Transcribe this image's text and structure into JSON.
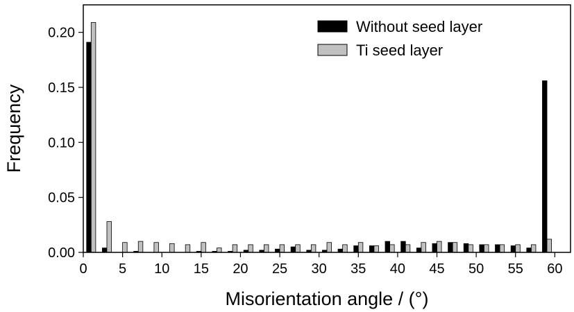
{
  "chart_data": {
    "type": "bar",
    "xlabel": "Misorientation angle / (°)",
    "ylabel": "Frequency",
    "xlim": [
      0,
      62
    ],
    "ylim": [
      0,
      0.225
    ],
    "bin_width": 2,
    "x": [
      1,
      3,
      5,
      7,
      9,
      11,
      13,
      15,
      17,
      19,
      21,
      23,
      25,
      27,
      29,
      31,
      33,
      35,
      37,
      39,
      41,
      43,
      45,
      47,
      49,
      51,
      53,
      55,
      57,
      59
    ],
    "x_ticks": [
      0,
      5,
      10,
      15,
      20,
      25,
      30,
      35,
      40,
      45,
      50,
      55,
      60
    ],
    "x_tick_labels": [
      "0",
      "5",
      "10",
      "15",
      "20",
      "25",
      "30",
      "35",
      "40",
      "45",
      "50",
      "55",
      "60"
    ],
    "y_ticks": [
      0.0,
      0.05,
      0.1,
      0.15,
      0.2
    ],
    "y_tick_labels": [
      "0.00",
      "0.05",
      "0.10",
      "0.15",
      "0.20"
    ],
    "legend_position": "top-right",
    "series": [
      {
        "name": "Without seed layer",
        "color": "#000000",
        "values": [
          0.191,
          0.004,
          0.0,
          0.001,
          0.0,
          0.0,
          0.0,
          0.001,
          0.001,
          0.001,
          0.002,
          0.002,
          0.003,
          0.005,
          0.002,
          0.002,
          0.003,
          0.006,
          0.006,
          0.01,
          0.01,
          0.004,
          0.008,
          0.009,
          0.008,
          0.007,
          0.007,
          0.006,
          0.004,
          0.156
        ]
      },
      {
        "name": "Ti seed layer",
        "color": "#c0c0c0",
        "values": [
          0.209,
          0.028,
          0.009,
          0.01,
          0.009,
          0.008,
          0.007,
          0.009,
          0.004,
          0.007,
          0.007,
          0.007,
          0.007,
          0.007,
          0.007,
          0.009,
          0.007,
          0.009,
          0.006,
          0.007,
          0.007,
          0.009,
          0.01,
          0.009,
          0.007,
          0.007,
          0.007,
          0.007,
          0.007,
          0.012
        ]
      }
    ]
  }
}
